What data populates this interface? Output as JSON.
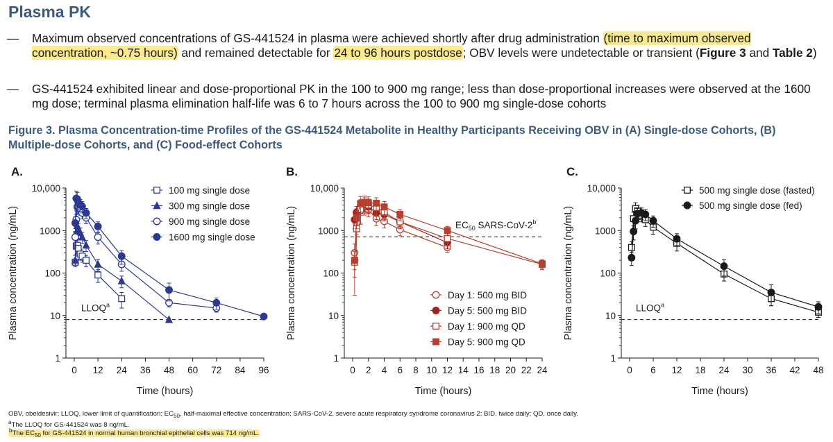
{
  "header": {
    "title": "Plasma PK"
  },
  "bullets": {
    "dash": "—",
    "b1": {
      "p1": "Maximum observed concentrations of GS-441524 in plasma were achieved shortly after drug administration ",
      "h1": "(time to maximum observed concentration, ~0.75 hours)",
      "p2": " and remained detectable for ",
      "h2": "24 to 96 hours postdose",
      "p3": "; OBV levels were undetectable or transient (",
      "bold1": "Figure 3",
      "p4": " and ",
      "bold2": "Table 2",
      "p5": ")"
    },
    "b2": "GS-441524 exhibited linear and dose-proportional PK in the 100 to 900 mg range; less than dose-proportional increases were observed at the 1600 mg dose; terminal plasma elimination half-life was 6 to 7 hours across the 100 to 900 mg single-dose cohorts"
  },
  "figure": {
    "title": "Figure 3. Plasma Concentration-time Profiles of the GS-441524 Metabolite in Healthy Participants Receiving OBV in (A) Single-dose Cohorts, (B) Multiple-dose Cohorts, and (C) Food-effect Cohorts"
  },
  "colors": {
    "navy": "#2b3990",
    "red": "#b6402f",
    "darkred": "#a3211c",
    "black": "#1a1a1a",
    "title": "#3b5a7c",
    "highlight": "#fbe98f"
  },
  "chart_data": [
    {
      "panel": "A.",
      "type": "line",
      "scale": "log",
      "xlabel": "Time (hours)",
      "ylabel": "Plasma concentration (ng/mL)",
      "xlim": [
        0,
        96
      ],
      "ylim": [
        1,
        10000
      ],
      "xticks": [
        0,
        12,
        24,
        36,
        48,
        60,
        72,
        84,
        96
      ],
      "yticks": [
        "1",
        "10",
        "100",
        "1000",
        "10,000"
      ],
      "reference_line": {
        "value": 8,
        "label": "LLOQ",
        "sup": "a"
      },
      "series": [
        {
          "name": "100 mg single dose",
          "marker": "square-open",
          "color": "#2b3990",
          "x": [
            0.5,
            1,
            1.5,
            2,
            3,
            4,
            6,
            12,
            24
          ],
          "y": [
            180,
            430,
            450,
            380,
            280,
            250,
            200,
            90,
            25
          ],
          "err": [
            2,
            150,
            160,
            120,
            80,
            70,
            60,
            30,
            10
          ]
        },
        {
          "name": "300 mg single dose",
          "marker": "triangle-filled",
          "color": "#2b3990",
          "x": [
            0.5,
            1,
            1.5,
            2,
            3,
            4,
            6,
            12,
            24,
            48
          ],
          "y": [
            200,
            900,
            1300,
            1100,
            900,
            700,
            450,
            160,
            65,
            8
          ],
          "err": [
            60,
            300,
            400,
            350,
            250,
            200,
            130,
            50,
            20,
            0
          ]
        },
        {
          "name": "900 mg single dose",
          "marker": "circle-open",
          "color": "#2b3990",
          "x": [
            0.5,
            1,
            1.5,
            2,
            3,
            4,
            6,
            12,
            24,
            48,
            72
          ],
          "y": [
            700,
            1800,
            3600,
            3600,
            3200,
            2600,
            2000,
            700,
            160,
            20,
            15
          ],
          "err": [
            250,
            600,
            1100,
            1100,
            900,
            700,
            550,
            220,
            50,
            4,
            3
          ]
        },
        {
          "name": "1600 mg single dose",
          "marker": "circle-filled",
          "color": "#2b3990",
          "x": [
            0.5,
            1,
            1.5,
            2,
            3,
            4,
            6,
            12,
            24,
            48,
            72,
            96
          ],
          "y": [
            1500,
            5700,
            5500,
            4600,
            4100,
            3700,
            2600,
            1250,
            250,
            40,
            20,
            9.5
          ],
          "err": [
            600,
            2800,
            2400,
            1800,
            1300,
            1100,
            700,
            350,
            90,
            18,
            6,
            1
          ]
        }
      ]
    },
    {
      "panel": "B.",
      "type": "line",
      "scale": "log",
      "xlabel": "Time (hours)",
      "ylabel": "Plasma concentration (ng/mL)",
      "xlim": [
        0,
        24
      ],
      "ylim": [
        1,
        10000
      ],
      "xticks": [
        0,
        2,
        4,
        6,
        8,
        10,
        12,
        14,
        16,
        18,
        20,
        22,
        24
      ],
      "yticks": [
        "1",
        "10",
        "100",
        "1000",
        "10,000"
      ],
      "reference_line": {
        "value": 714,
        "label": "EC",
        "sub": "50",
        "label_rest": " SARS-CoV-2",
        "sup": "b"
      },
      "series": [
        {
          "name": "Day 1: 500 mg BID",
          "marker": "circle-open",
          "color": "#b6402f",
          "x": [
            0.25,
            0.5,
            1,
            1.5,
            2,
            3,
            4,
            6,
            12
          ],
          "y": [
            300,
            1500,
            3000,
            3500,
            3100,
            1900,
            1650,
            1050,
            400
          ],
          "err": [
            180,
            700,
            1500,
            1200,
            1000,
            600,
            500,
            300,
            90
          ]
        },
        {
          "name": "Day 5: 500 mg BID",
          "marker": "circle-filled",
          "color": "#a3211c",
          "x": [
            0.25,
            0.5,
            1,
            1.5,
            2,
            3,
            4,
            6,
            12
          ],
          "y": [
            1800,
            2700,
            3800,
            4000,
            3600,
            2600,
            2400,
            1600,
            520
          ],
          "err": [
            700,
            1000,
            1500,
            1300,
            1100,
            800,
            700,
            450,
            150
          ]
        },
        {
          "name": "Day 1: 900 mg QD",
          "marker": "square-open",
          "color": "#b6402f",
          "x": [
            0.25,
            0.5,
            1,
            1.5,
            2,
            3,
            4,
            6,
            12,
            24
          ],
          "y": [
            180,
            1100,
            3200,
            4200,
            4000,
            3500,
            2700,
            1600,
            650,
            160
          ],
          "err": [
            150,
            900,
            1800,
            1700,
            1500,
            1200,
            900,
            500,
            200,
            40
          ]
        },
        {
          "name": "Day 5: 900 mg QD",
          "marker": "square-filled",
          "color": "#b6402f",
          "x": [
            0.25,
            0.5,
            1,
            1.5,
            2,
            3,
            4,
            6,
            12,
            24
          ],
          "y": [
            200,
            2000,
            4300,
            4600,
            4500,
            4400,
            3600,
            2400,
            1000,
            165
          ],
          "err": [
            120,
            900,
            2000,
            1900,
            1700,
            1500,
            1200,
            700,
            250,
            40
          ]
        }
      ]
    },
    {
      "panel": "C.",
      "type": "line",
      "scale": "log",
      "xlabel": "Time (hours)",
      "ylabel": "Plasma concentration (ng/mL)",
      "xlim": [
        0,
        48
      ],
      "ylim": [
        1,
        10000
      ],
      "xticks": [
        0,
        6,
        12,
        18,
        24,
        30,
        36,
        42,
        48
      ],
      "yticks": [
        "1",
        "10",
        "100",
        "1000",
        "10,000"
      ],
      "reference_line": {
        "value": 8,
        "label": "LLOQ",
        "sup": "a"
      },
      "series": [
        {
          "name": "500 mg single dose (fasted)",
          "marker": "square-open",
          "color": "#1a1a1a",
          "x": [
            0.5,
            1,
            1.5,
            2,
            3,
            4,
            6,
            12,
            24,
            36,
            48
          ],
          "y": [
            400,
            1900,
            3300,
            2900,
            2300,
            1800,
            1200,
            500,
            95,
            25,
            12
          ],
          "err": [
            150,
            800,
            1200,
            1000,
            700,
            550,
            380,
            170,
            30,
            8,
            3
          ]
        },
        {
          "name": "500 mg single dose (fed)",
          "marker": "circle-filled",
          "color": "#1a1a1a",
          "x": [
            0.5,
            1,
            1.5,
            2,
            3,
            4,
            6,
            12,
            24,
            36,
            48
          ],
          "y": [
            230,
            950,
            1700,
            2500,
            2600,
            2400,
            1700,
            640,
            145,
            35,
            16
          ],
          "err": [
            80,
            350,
            600,
            800,
            800,
            700,
            500,
            200,
            60,
            18,
            5
          ]
        }
      ]
    }
  ],
  "footnotes": {
    "f1_pre": "OBV, obeldesivir; LLOQ, lower limit of quantification; EC",
    "f1_sub": "50",
    "f1_post": ", half-maximal effective concentration; SARS-CoV-2, severe acute respiratory syndrome coronavirus 2; BID, twice daily; QD, once daily.",
    "f2_sup": "a",
    "f2": "The LLOQ for GS-441524 was 8 ng/mL.",
    "f3_sup": "b",
    "f3_pre": "The EC",
    "f3_sub": "50",
    "f3_post": " for GS-441524 in normal human bronchial epithelial cells was 714 ng/mL."
  }
}
